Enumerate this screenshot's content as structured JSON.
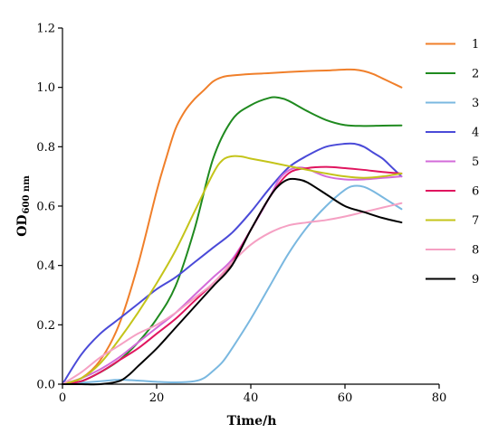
{
  "chart_data": {
    "type": "line",
    "xlabel": "Time/h",
    "ylabel": "OD",
    "ylabel_sub": "600 nm",
    "xlim": [
      0,
      80
    ],
    "ylim": [
      0,
      1.2
    ],
    "xticks": [
      "0",
      "20",
      "40",
      "60",
      "80"
    ],
    "yticks": [
      "0.0",
      "0.2",
      "0.4",
      "0.6",
      "0.8",
      "1.0",
      "1.2"
    ],
    "grid": false,
    "legend_position": "right",
    "series": [
      {
        "name": "1",
        "color": "#f07f2a",
        "x": [
          0,
          4,
          8,
          12,
          16,
          20,
          22,
          24,
          26,
          28,
          30,
          32,
          34,
          36,
          40,
          44,
          48,
          52,
          56,
          60,
          62,
          64,
          66,
          68,
          70,
          72
        ],
        "y": [
          0,
          0.02,
          0.08,
          0.2,
          0.4,
          0.65,
          0.76,
          0.86,
          0.92,
          0.96,
          0.99,
          1.02,
          1.035,
          1.04,
          1.045,
          1.048,
          1.052,
          1.055,
          1.057,
          1.06,
          1.06,
          1.055,
          1.045,
          1.03,
          1.015,
          1.0
        ]
      },
      {
        "name": "2",
        "color": "#1f8a1f",
        "x": [
          0,
          4,
          8,
          12,
          16,
          20,
          24,
          28,
          32,
          36,
          40,
          44,
          46,
          48,
          52,
          56,
          60,
          64,
          68,
          72
        ],
        "y": [
          0,
          0.01,
          0.04,
          0.08,
          0.14,
          0.22,
          0.33,
          0.52,
          0.76,
          0.89,
          0.94,
          0.965,
          0.965,
          0.955,
          0.92,
          0.89,
          0.873,
          0.87,
          0.871,
          0.872
        ]
      },
      {
        "name": "3",
        "color": "#7ab8e0",
        "x": [
          0,
          4,
          8,
          12,
          16,
          20,
          24,
          28,
          30,
          32,
          34,
          36,
          40,
          44,
          48,
          52,
          56,
          60,
          62,
          64,
          66,
          68,
          70,
          72
        ],
        "y": [
          0,
          0.005,
          0.01,
          0.015,
          0.012,
          0.008,
          0.006,
          0.01,
          0.02,
          0.045,
          0.075,
          0.12,
          0.22,
          0.33,
          0.44,
          0.53,
          0.6,
          0.655,
          0.668,
          0.665,
          0.65,
          0.63,
          0.61,
          0.59
        ]
      },
      {
        "name": "4",
        "color": "#4a4ad8",
        "x": [
          0,
          4,
          8,
          12,
          16,
          20,
          24,
          28,
          32,
          36,
          40,
          44,
          48,
          52,
          56,
          60,
          62,
          64,
          66,
          68,
          70,
          72
        ],
        "y": [
          0,
          0.1,
          0.17,
          0.22,
          0.27,
          0.32,
          0.36,
          0.41,
          0.46,
          0.51,
          0.58,
          0.66,
          0.73,
          0.77,
          0.8,
          0.81,
          0.81,
          0.8,
          0.78,
          0.76,
          0.73,
          0.7
        ]
      },
      {
        "name": "5",
        "color": "#d36bd9",
        "x": [
          0,
          4,
          8,
          12,
          16,
          20,
          24,
          28,
          32,
          36,
          40,
          44,
          46,
          48,
          50,
          52,
          56,
          60,
          64,
          68,
          72
        ],
        "y": [
          0,
          0.02,
          0.05,
          0.09,
          0.14,
          0.19,
          0.24,
          0.3,
          0.36,
          0.42,
          0.52,
          0.63,
          0.69,
          0.72,
          0.73,
          0.725,
          0.7,
          0.69,
          0.69,
          0.695,
          0.7
        ]
      },
      {
        "name": "6",
        "color": "#e0155f",
        "x": [
          0,
          4,
          8,
          12,
          16,
          20,
          24,
          28,
          32,
          36,
          40,
          44,
          48,
          52,
          56,
          60,
          64,
          68,
          72
        ],
        "y": [
          0,
          0.01,
          0.04,
          0.08,
          0.12,
          0.17,
          0.22,
          0.28,
          0.34,
          0.41,
          0.52,
          0.63,
          0.71,
          0.728,
          0.732,
          0.728,
          0.722,
          0.715,
          0.71
        ]
      },
      {
        "name": "7",
        "color": "#c4c41a",
        "x": [
          0,
          4,
          8,
          12,
          16,
          20,
          24,
          28,
          32,
          34,
          36,
          38,
          40,
          44,
          48,
          52,
          56,
          60,
          64,
          68,
          72
        ],
        "y": [
          0,
          0.02,
          0.07,
          0.15,
          0.24,
          0.34,
          0.45,
          0.58,
          0.71,
          0.755,
          0.768,
          0.767,
          0.76,
          0.748,
          0.735,
          0.722,
          0.71,
          0.7,
          0.695,
          0.7,
          0.71
        ]
      },
      {
        "name": "8",
        "color": "#f5a0c3",
        "x": [
          0,
          4,
          8,
          12,
          16,
          20,
          24,
          28,
          32,
          36,
          40,
          44,
          48,
          52,
          56,
          60,
          64,
          68,
          72
        ],
        "y": [
          0,
          0.04,
          0.09,
          0.13,
          0.17,
          0.2,
          0.24,
          0.29,
          0.34,
          0.41,
          0.47,
          0.51,
          0.535,
          0.545,
          0.553,
          0.565,
          0.58,
          0.595,
          0.61
        ]
      },
      {
        "name": "9",
        "color": "#000000",
        "x": [
          0,
          4,
          8,
          12,
          14,
          16,
          20,
          24,
          28,
          32,
          36,
          40,
          44,
          46,
          48,
          50,
          52,
          56,
          60,
          64,
          68,
          72
        ],
        "y": [
          0,
          0,
          0,
          0.01,
          0.03,
          0.06,
          0.12,
          0.19,
          0.26,
          0.33,
          0.4,
          0.52,
          0.63,
          0.67,
          0.69,
          0.69,
          0.68,
          0.64,
          0.6,
          0.58,
          0.56,
          0.545
        ]
      }
    ]
  }
}
